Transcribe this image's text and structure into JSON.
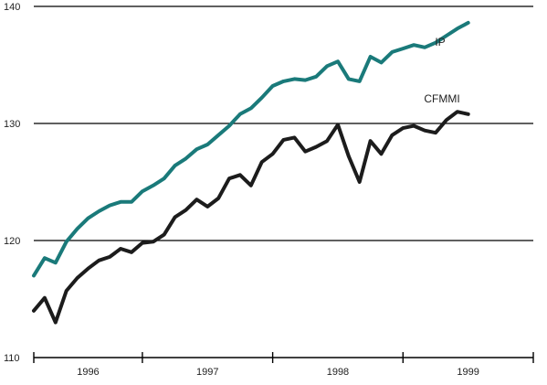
{
  "chart_data": {
    "type": "line",
    "title": "",
    "xlabel": "",
    "ylabel": "",
    "ylim": [
      110,
      140
    ],
    "yticks": [
      110,
      120,
      130,
      140
    ],
    "year_labels": [
      "1996",
      "1997",
      "1998",
      "1999"
    ],
    "xlim": [
      1995.6667,
      1999.5
    ],
    "year_ticks": [
      1995.6667,
      1996.5,
      1997.5,
      1998.5,
      1999.5
    ],
    "grid": true,
    "colors": {
      "IP": "#1a7a7a",
      "CFMMI": "#1c1c1c"
    },
    "series": [
      {
        "name": "IP",
        "x": [
          1995.6667,
          1995.75,
          1995.8333,
          1995.9167,
          1996.0,
          1996.0833,
          1996.1667,
          1996.25,
          1996.3333,
          1996.4167,
          1996.5,
          1996.5833,
          1996.6667,
          1996.75,
          1996.8333,
          1996.9167,
          1997.0,
          1997.0833,
          1997.1667,
          1997.25,
          1997.3333,
          1997.4167,
          1997.5,
          1997.5833,
          1997.6667,
          1997.75,
          1997.8333,
          1997.9167,
          1998.0,
          1998.0833,
          1998.1667,
          1998.25,
          1998.3333,
          1998.4167,
          1998.5,
          1998.5833,
          1998.6667,
          1998.75,
          1998.8333,
          1998.9167,
          1999.0
        ],
        "values": [
          117.0,
          118.5,
          118.1,
          119.9,
          121.0,
          121.9,
          122.5,
          123.0,
          123.3,
          123.3,
          124.2,
          124.7,
          125.3,
          126.4,
          127.0,
          127.8,
          128.2,
          129.0,
          129.8,
          130.8,
          131.3,
          132.2,
          133.2,
          133.6,
          133.8,
          133.7,
          134.0,
          134.9,
          135.3,
          133.8,
          133.6,
          135.7,
          135.2,
          136.1,
          136.4,
          136.7,
          136.5,
          136.9,
          137.5,
          138.1,
          138.6
        ]
      },
      {
        "name": "CFMMI",
        "x": [
          1995.6667,
          1995.75,
          1995.8333,
          1995.9167,
          1996.0,
          1996.0833,
          1996.1667,
          1996.25,
          1996.3333,
          1996.4167,
          1996.5,
          1996.5833,
          1996.6667,
          1996.75,
          1996.8333,
          1996.9167,
          1997.0,
          1997.0833,
          1997.1667,
          1997.25,
          1997.3333,
          1997.4167,
          1997.5,
          1997.5833,
          1997.6667,
          1997.75,
          1997.8333,
          1997.9167,
          1998.0,
          1998.0833,
          1998.1667,
          1998.25,
          1998.3333,
          1998.4167,
          1998.5,
          1998.5833,
          1998.6667,
          1998.75,
          1998.8333,
          1998.9167,
          1999.0
        ],
        "values": [
          114.0,
          115.1,
          113.0,
          115.7,
          116.8,
          117.6,
          118.3,
          118.6,
          119.3,
          119.0,
          119.8,
          119.9,
          120.5,
          122.0,
          122.6,
          123.5,
          122.9,
          123.6,
          125.3,
          125.6,
          124.7,
          126.7,
          127.4,
          128.6,
          128.8,
          127.6,
          128.0,
          128.5,
          129.9,
          127.2,
          125.0,
          128.5,
          127.4,
          129.0,
          129.6,
          129.8,
          129.4,
          129.2,
          130.3,
          131.0,
          130.8
        ]
      }
    ],
    "series_labels": [
      "IP",
      "CFMMI"
    ]
  }
}
